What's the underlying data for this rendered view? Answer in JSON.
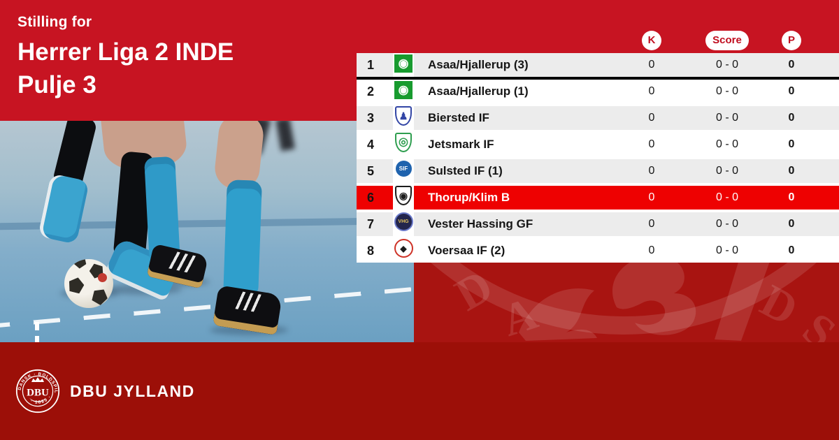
{
  "header": {
    "kicker": "Stilling for",
    "title1": "Herrer Liga 2 INDE",
    "title2": "Pulje 3"
  },
  "table": {
    "columns": {
      "k": "K",
      "score": "Score",
      "p": "P"
    },
    "rows": [
      {
        "pos": "1",
        "team": "Asaa/Hjallerup (3)",
        "k": "0",
        "score": "0 - 0",
        "p": "0",
        "highlighted": false,
        "logo": {
          "shape": "square",
          "bg": "#189B2F",
          "border": "#ffffff",
          "fg": "#ffffff",
          "glyph": "◉",
          "fs": 17
        }
      },
      {
        "pos": "2",
        "team": "Asaa/Hjallerup (1)",
        "k": "0",
        "score": "0 - 0",
        "p": "0",
        "highlighted": false,
        "logo": {
          "shape": "square",
          "bg": "#189B2F",
          "border": "#ffffff",
          "fg": "#ffffff",
          "glyph": "◉",
          "fs": 17
        }
      },
      {
        "pos": "3",
        "team": "Biersted IF",
        "k": "0",
        "score": "0 - 0",
        "p": "0",
        "highlighted": false,
        "logo": {
          "shape": "shield",
          "bg": "#ffffff",
          "border": "#3346A5",
          "fg": "#3346A5",
          "glyph": "♟",
          "fs": 14
        }
      },
      {
        "pos": "4",
        "team": "Jetsmark IF",
        "k": "0",
        "score": "0 - 0",
        "p": "0",
        "highlighted": false,
        "logo": {
          "shape": "shield",
          "bg": "#ffffff",
          "border": "#2E9E4F",
          "fg": "#2E9E4F",
          "glyph": "◎",
          "fs": 16
        }
      },
      {
        "pos": "5",
        "team": "Sulsted IF (1)",
        "k": "0",
        "score": "0 - 0",
        "p": "0",
        "highlighted": false,
        "logo": {
          "shape": "circle",
          "bg": "#1F63AE",
          "border": "#ffffff",
          "fg": "#ffffff",
          "glyph": "SIF",
          "fs": 8
        }
      },
      {
        "pos": "6",
        "team": "Thorup/Klim B",
        "k": "0",
        "score": "0 - 0",
        "p": "0",
        "highlighted": true,
        "logo": {
          "shape": "shield",
          "bg": "#ffffff",
          "border": "#1C1C1C",
          "fg": "#1C1C1C",
          "glyph": "◉",
          "fs": 14
        }
      },
      {
        "pos": "7",
        "team": "Vester Hassing GF",
        "k": "0",
        "score": "0 - 0",
        "p": "0",
        "highlighted": false,
        "logo": {
          "shape": "circle",
          "bg": "#23254C",
          "border": "#6A79C9",
          "fg": "#E3C35A",
          "glyph": "VHG",
          "fs": 7
        }
      },
      {
        "pos": "8",
        "team": "Voersaa IF (2)",
        "k": "0",
        "score": "0 - 0",
        "p": "0",
        "highlighted": false,
        "logo": {
          "shape": "circle",
          "bg": "#ffffff",
          "border": "#CE3227",
          "fg": "#1C1C1C",
          "glyph": "◆",
          "fs": 12
        }
      }
    ]
  },
  "footer": {
    "brand": "DBU JYLLAND",
    "logo_ring_text": "DANSK · BOLDSPIL · UNION",
    "logo_year": "· 1889 ·",
    "logo_center": "DBU"
  },
  "colors": {
    "accent_red": "#C71422",
    "highlight_red": "#EE0101",
    "row_gray": "#ECECEC",
    "watermark_red": "#A81411",
    "bottom_band_red": "#9C0F08",
    "badge_text_red": "#C00E1F"
  }
}
